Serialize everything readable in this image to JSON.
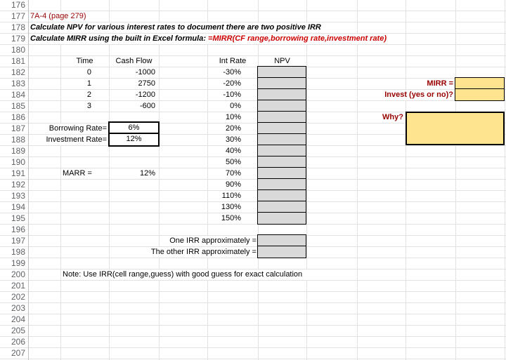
{
  "sheet": {
    "first_row": 176,
    "last_row": 207
  },
  "colors": {
    "label_red": "#990000",
    "formula_red": "#cc0000",
    "yellow_fill": "#ffe48f",
    "gray_fill": "#d9d9d9",
    "gridline": "#e2e2e2"
  },
  "titles": {
    "problem": "7A-4 (page 279)",
    "line1": "Calculate NPV for various interest rates to document there are two positive IRR",
    "line2_black": "Calculate MIRR using the built in Excel formula: ",
    "line2_red": "=MIRR(CF range,borrowing rate,investment rate)"
  },
  "headers": {
    "time": "Time",
    "cash_flow": "Cash Flow",
    "int_rate": "Int Rate",
    "npv": "NPV"
  },
  "cashflow_rows": [
    {
      "time": "0",
      "cash_flow": "-1000"
    },
    {
      "time": "1",
      "cash_flow": "2750"
    },
    {
      "time": "2",
      "cash_flow": "-1200"
    },
    {
      "time": "3",
      "cash_flow": "-600"
    }
  ],
  "int_rates": [
    "-30%",
    "-20%",
    "-10%",
    "0%",
    "10%",
    "20%",
    "30%",
    "40%",
    "50%",
    "70%",
    "90%",
    "110%",
    "130%",
    "150%"
  ],
  "params": {
    "borrowing_label": "Borrowing Rate=",
    "borrowing_value": "6%",
    "investment_label": "Investment Rate=",
    "investment_value": "12%",
    "marr_label": "MARR =",
    "marr_value": "12%"
  },
  "right_panel": {
    "mirr_label": "MIRR =",
    "invest_label": "Invest (yes or no)?",
    "why_label": "Why?"
  },
  "irr_labels": {
    "one": "One IRR approximately =",
    "other": "The other IRR approximately ="
  },
  "note": "Note: Use IRR(cell range,guess) with good guess for exact calculation"
}
